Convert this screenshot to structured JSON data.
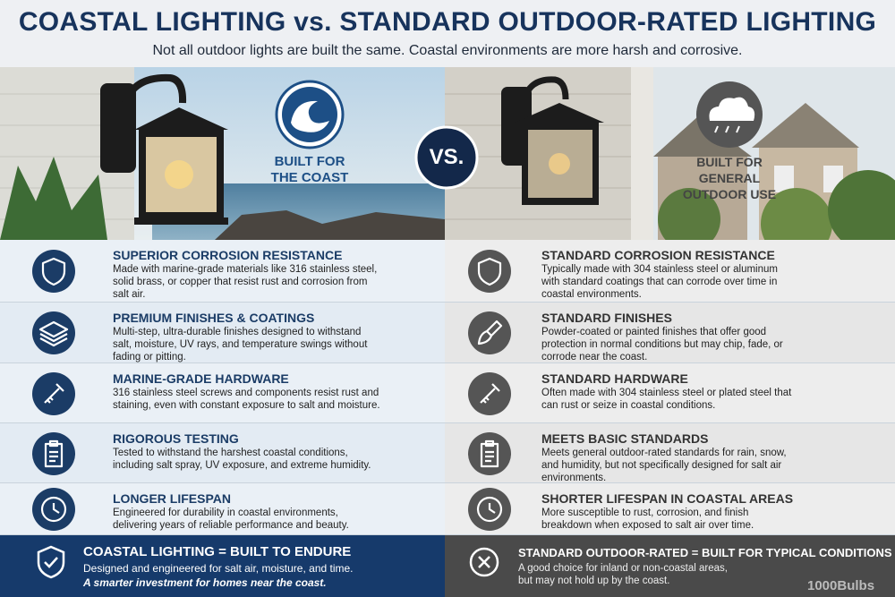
{
  "header": {
    "title": "COASTAL LIGHTING vs. STANDARD OUTDOOR-RATED LIGHTING",
    "subtitle": "Not all outdoor lights are built the same. Coastal environments are more harsh and corrosive."
  },
  "hero": {
    "left_label": [
      "BUILT FOR",
      "THE COAST"
    ],
    "vs": "VS.",
    "right_label": [
      "BUILT FOR",
      "GENERAL",
      "OUTDOOR USE"
    ]
  },
  "columns": {
    "left": [
      {
        "title": "SUPERIOR CORROSION RESISTANCE",
        "text": "Made with marine-grade materials like 316 stainless steel, solid brass, or copper that resist rust and corrosion from salt air."
      },
      {
        "title": "PREMIUM FINISHES & COATINGS",
        "text": "Multi-step, ultra-durable finishes designed to withstand salt, moisture, UV rays, and temperature swings without fading or pitting."
      },
      {
        "title": "MARINE-GRADE HARDWARE",
        "text": "316 stainless steel screws and components resist rust and staining, even with constant exposure to salt and moisture."
      },
      {
        "title": "RIGOROUS TESTING",
        "text": "Tested to withstand the harshest coastal conditions, including salt spray, UV exposure, and extreme humidity."
      },
      {
        "title": "LONGER LIFESPAN",
        "text": "Engineered for durability in coastal environments, delivering years of reliable performance and beauty."
      }
    ],
    "right": [
      {
        "title": "STANDARD CORROSION RESISTANCE",
        "text": "Typically made with 304 stainless steel or aluminum with standard coatings that can corrode over time in coastal environments."
      },
      {
        "title": "STANDARD FINISHES",
        "text": "Powder-coated or painted finishes that offer good protection in normal conditions but may chip, fade, or corrode near the coast."
      },
      {
        "title": "STANDARD HARDWARE",
        "text": "Often made with 304 stainless steel or plated steel that can rust or seize in coastal conditions."
      },
      {
        "title": "MEETS BASIC STANDARDS",
        "text": "Meets general outdoor-rated standards for rain, snow, and humidity, but not specifically designed for salt air environments."
      },
      {
        "title": "SHORTER LIFESPAN IN COASTAL AREAS",
        "text": "More susceptible to rust, corrosion, and finish breakdown when exposed to salt air over time."
      }
    ]
  },
  "footer": {
    "left": {
      "title": "COASTAL LIGHTING = BUILT TO ENDURE",
      "text": "Designed and engineered for salt air, moisture, and time.",
      "tagline": "A smarter investment for homes near the coast."
    },
    "right": {
      "title": "STANDARD OUTDOOR-RATED = BUILT FOR TYPICAL CONDITIONS",
      "text": "A good choice for inland or non-coastal areas, but may not hold up by the coast."
    },
    "brand": "1000Bulbs"
  }
}
